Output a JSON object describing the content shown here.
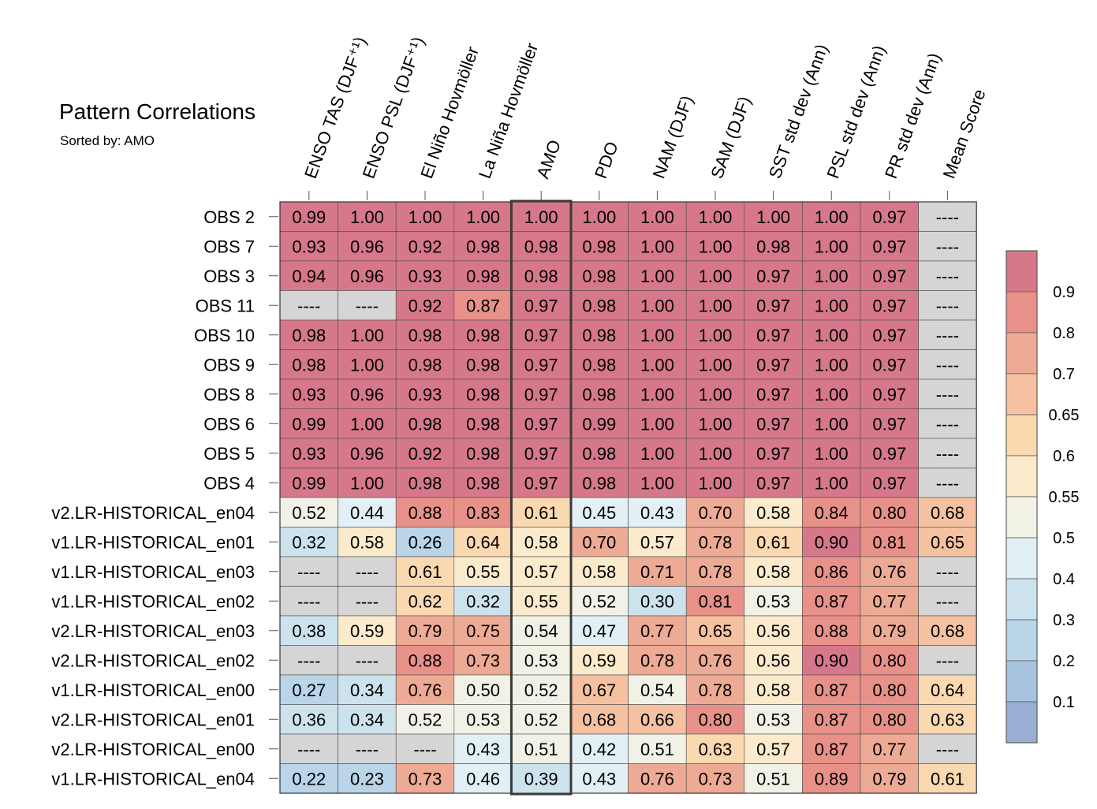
{
  "chart_data": {
    "type": "heatmap",
    "title": "Pattern Correlations",
    "subtitle": "Sorted by: AMO",
    "columns": [
      "ENSO TAS (DJF⁺¹)",
      "ENSO PSL (DJF⁺¹)",
      "El Niño Hovmöller",
      "La Niña Hovmöller",
      "AMO",
      "PDO",
      "NAM (DJF)",
      "SAM (DJF)",
      "SST std dev (Ann)",
      "PSL std dev (Ann)",
      "PR std dev (Ann)",
      "Mean Score"
    ],
    "highlight_column": "AMO",
    "missing_label": "----",
    "rows": [
      {
        "name": "OBS 2",
        "values": [
          0.99,
          1.0,
          1.0,
          1.0,
          1.0,
          1.0,
          1.0,
          1.0,
          1.0,
          1.0,
          0.97,
          null
        ]
      },
      {
        "name": "OBS 7",
        "values": [
          0.93,
          0.96,
          0.92,
          0.98,
          0.98,
          0.98,
          1.0,
          1.0,
          0.98,
          1.0,
          0.97,
          null
        ]
      },
      {
        "name": "OBS 3",
        "values": [
          0.94,
          0.96,
          0.93,
          0.98,
          0.98,
          0.98,
          1.0,
          1.0,
          0.97,
          1.0,
          0.97,
          null
        ]
      },
      {
        "name": "OBS 11",
        "values": [
          null,
          null,
          0.92,
          0.87,
          0.97,
          0.98,
          1.0,
          1.0,
          0.97,
          1.0,
          0.97,
          null
        ]
      },
      {
        "name": "OBS 10",
        "values": [
          0.98,
          1.0,
          0.98,
          0.98,
          0.97,
          0.98,
          1.0,
          1.0,
          0.97,
          1.0,
          0.97,
          null
        ]
      },
      {
        "name": "OBS 9",
        "values": [
          0.98,
          1.0,
          0.98,
          0.98,
          0.97,
          0.98,
          1.0,
          1.0,
          0.97,
          1.0,
          0.97,
          null
        ]
      },
      {
        "name": "OBS 8",
        "values": [
          0.93,
          0.96,
          0.93,
          0.98,
          0.97,
          0.98,
          1.0,
          1.0,
          0.97,
          1.0,
          0.97,
          null
        ]
      },
      {
        "name": "OBS 6",
        "values": [
          0.99,
          1.0,
          0.98,
          0.98,
          0.97,
          0.99,
          1.0,
          1.0,
          0.97,
          1.0,
          0.97,
          null
        ]
      },
      {
        "name": "OBS 5",
        "values": [
          0.93,
          0.96,
          0.92,
          0.98,
          0.97,
          0.98,
          1.0,
          1.0,
          0.97,
          1.0,
          0.97,
          null
        ]
      },
      {
        "name": "OBS 4",
        "values": [
          0.99,
          1.0,
          0.98,
          0.98,
          0.97,
          0.98,
          1.0,
          1.0,
          0.97,
          1.0,
          0.97,
          null
        ]
      },
      {
        "name": "v2.LR-HISTORICAL_en04",
        "values": [
          0.52,
          0.44,
          0.88,
          0.83,
          0.61,
          0.45,
          0.43,
          0.7,
          0.58,
          0.84,
          0.8,
          0.68
        ]
      },
      {
        "name": "v1.LR-HISTORICAL_en01",
        "values": [
          0.32,
          0.58,
          0.26,
          0.64,
          0.58,
          0.7,
          0.57,
          0.78,
          0.61,
          0.9,
          0.81,
          0.65
        ]
      },
      {
        "name": "v1.LR-HISTORICAL_en03",
        "values": [
          null,
          null,
          0.61,
          0.55,
          0.57,
          0.58,
          0.71,
          0.78,
          0.58,
          0.86,
          0.76,
          null
        ]
      },
      {
        "name": "v1.LR-HISTORICAL_en02",
        "values": [
          null,
          null,
          0.62,
          0.32,
          0.55,
          0.52,
          0.3,
          0.81,
          0.53,
          0.87,
          0.77,
          null
        ]
      },
      {
        "name": "v2.LR-HISTORICAL_en03",
        "values": [
          0.38,
          0.59,
          0.79,
          0.75,
          0.54,
          0.47,
          0.77,
          0.65,
          0.56,
          0.88,
          0.79,
          0.68
        ]
      },
      {
        "name": "v2.LR-HISTORICAL_en02",
        "values": [
          null,
          null,
          0.88,
          0.73,
          0.53,
          0.59,
          0.78,
          0.76,
          0.56,
          0.9,
          0.8,
          null
        ]
      },
      {
        "name": "v1.LR-HISTORICAL_en00",
        "values": [
          0.27,
          0.34,
          0.76,
          0.5,
          0.52,
          0.67,
          0.54,
          0.78,
          0.58,
          0.87,
          0.8,
          0.64
        ]
      },
      {
        "name": "v2.LR-HISTORICAL_en01",
        "values": [
          0.36,
          0.34,
          0.52,
          0.53,
          0.52,
          0.68,
          0.66,
          0.8,
          0.53,
          0.87,
          0.8,
          0.63
        ]
      },
      {
        "name": "v2.LR-HISTORICAL_en00",
        "values": [
          null,
          null,
          null,
          0.43,
          0.51,
          0.42,
          0.51,
          0.63,
          0.57,
          0.87,
          0.77,
          null
        ]
      },
      {
        "name": "v1.LR-HISTORICAL_en04",
        "values": [
          0.22,
          0.23,
          0.73,
          0.46,
          0.39,
          0.43,
          0.76,
          0.73,
          0.51,
          0.89,
          0.79,
          0.61
        ]
      }
    ],
    "colorbar": {
      "tick_labels": [
        "0.9",
        "0.8",
        "0.7",
        "0.65",
        "0.6",
        "0.55",
        "0.5",
        "0.4",
        "0.3",
        "0.2",
        "0.1"
      ],
      "levels": [
        0.1,
        0.2,
        0.3,
        0.4,
        0.5,
        0.55,
        0.6,
        0.65,
        0.7,
        0.8,
        0.9
      ],
      "colors": [
        "#9aaed4",
        "#a8c3e0",
        "#bad4e8",
        "#cce3ee",
        "#e2eff4",
        "#f2f1e6",
        "#fbeacc",
        "#fad8b0",
        "#f5c1a1",
        "#edaa94",
        "#e89189",
        "#d6788a"
      ],
      "missing_color": "#d5d5d5",
      "placement": "right"
    }
  }
}
